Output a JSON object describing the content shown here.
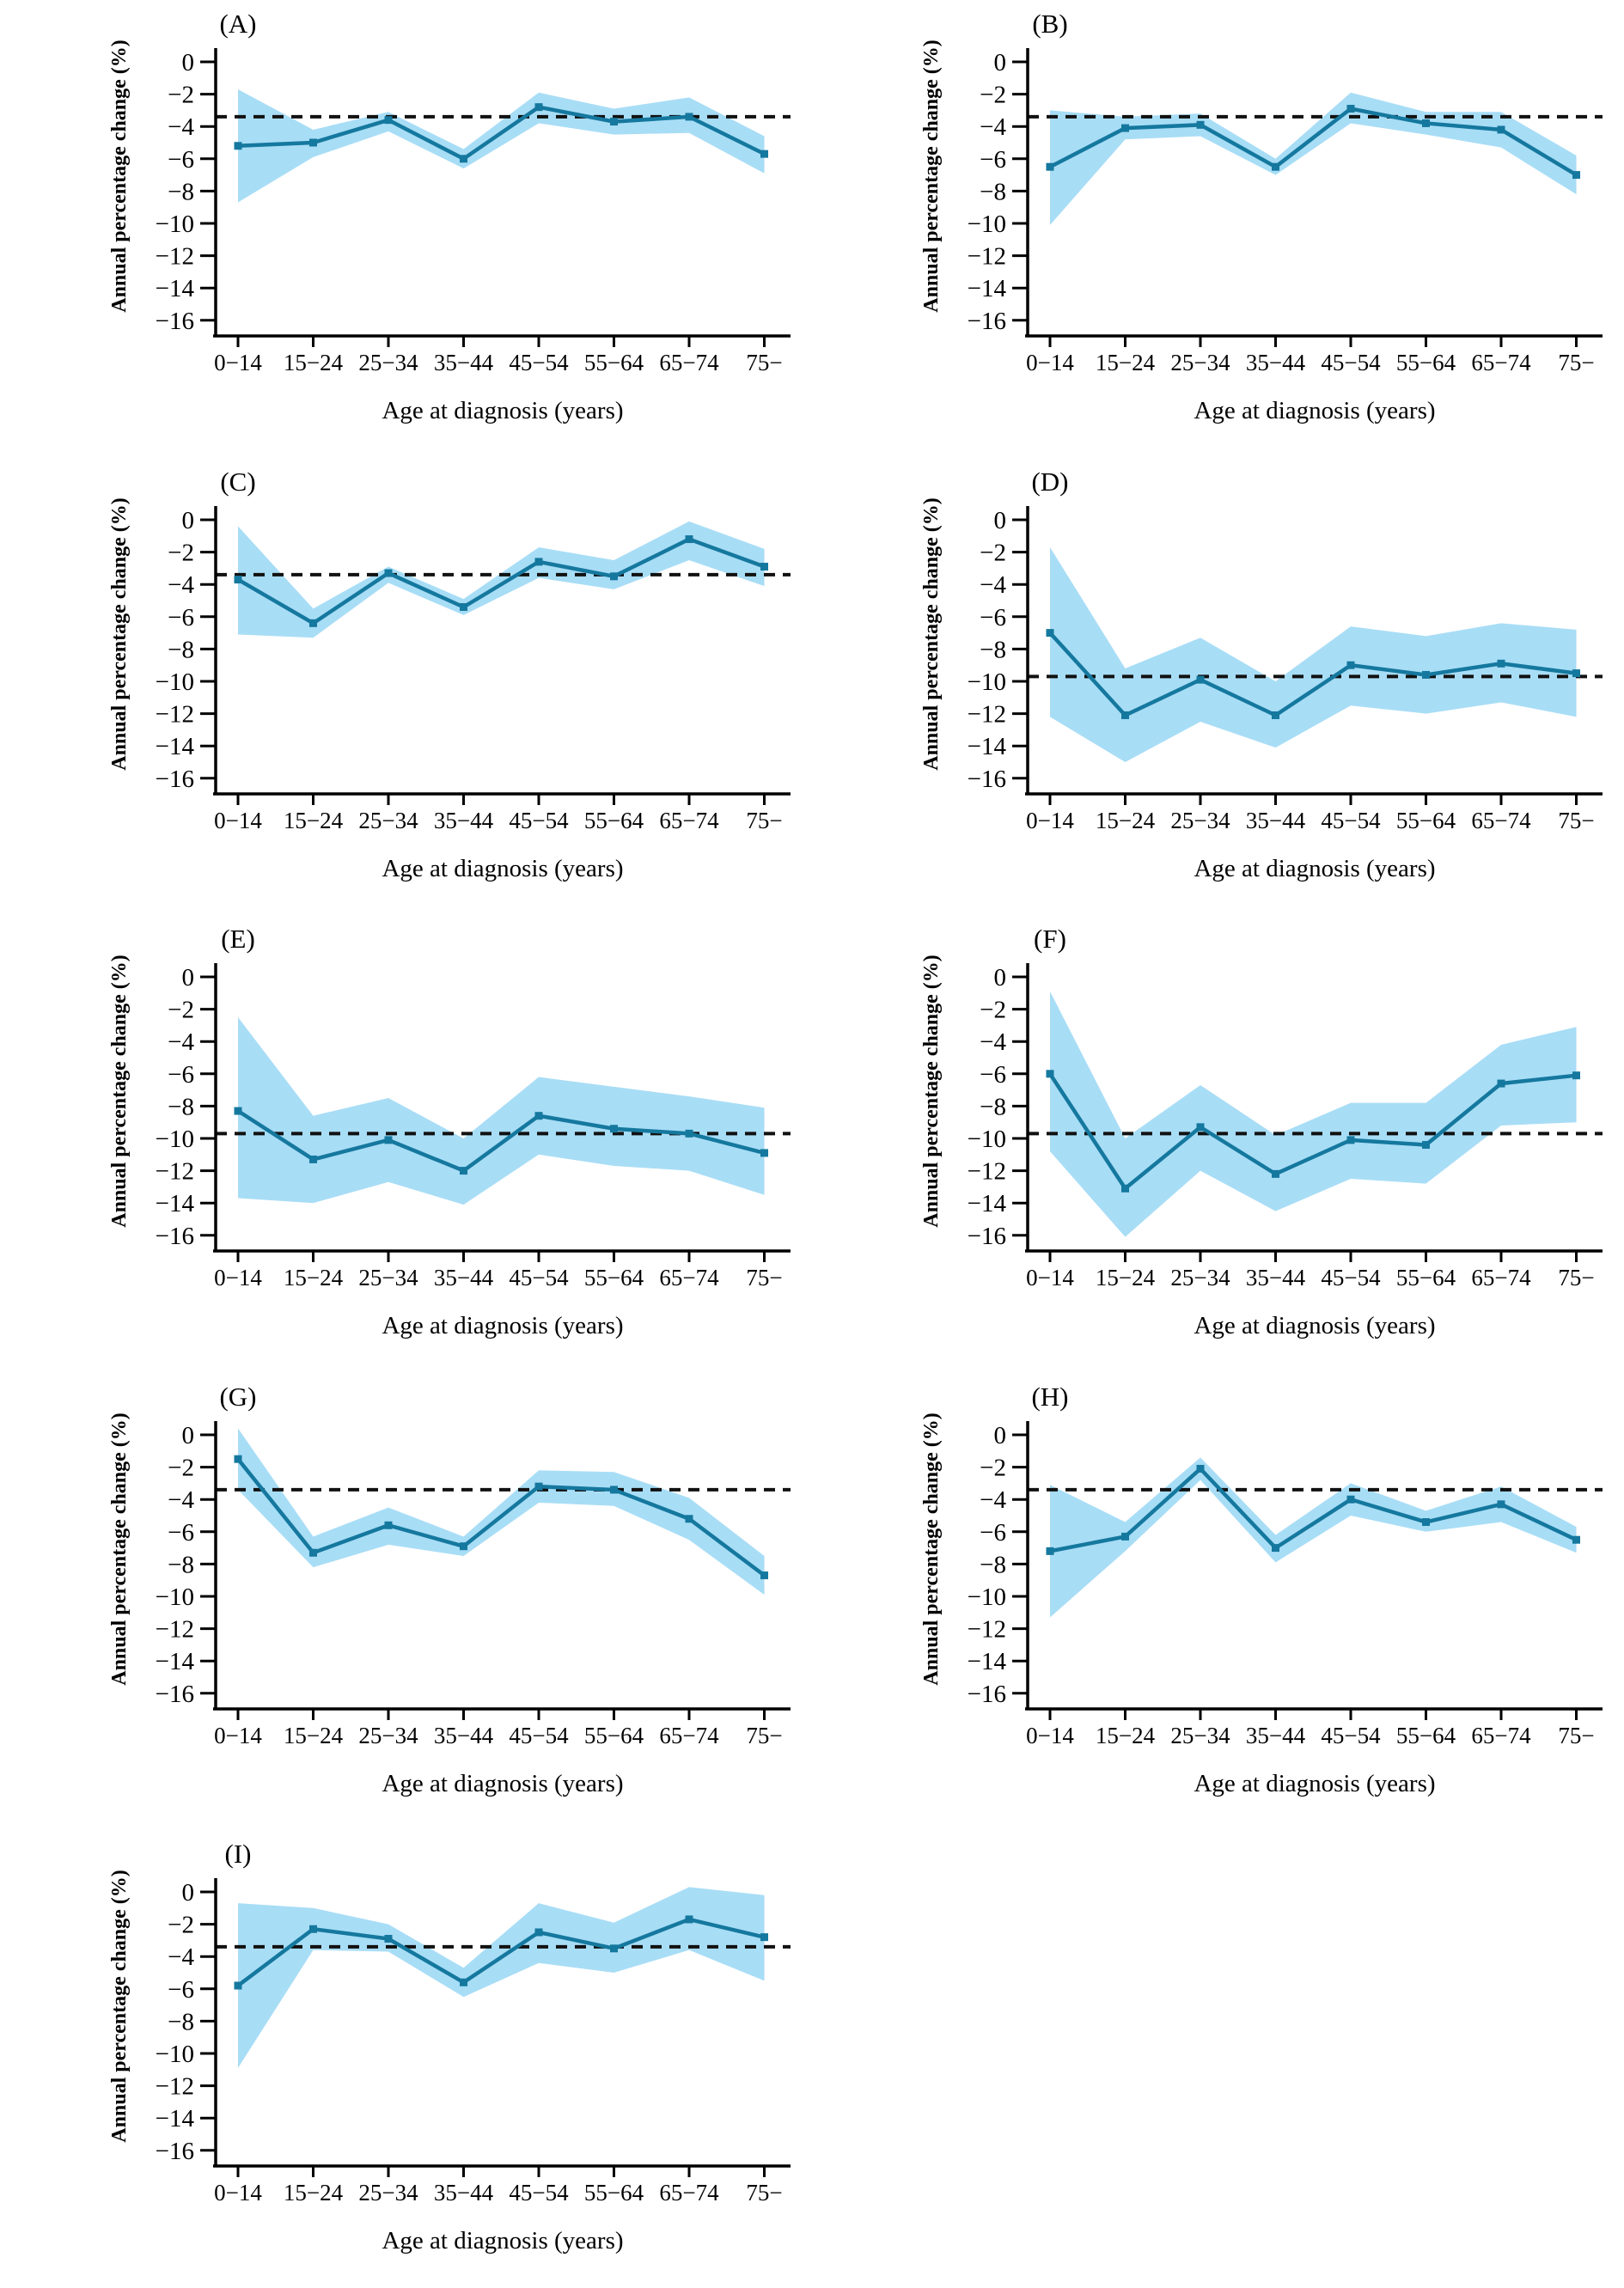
{
  "figure": {
    "background": "#ffffff"
  },
  "chart_data": {
    "type": "line",
    "title": "",
    "x_label": "Age at diagnosis (years)",
    "y_label": "Annual percentage change (%)",
    "categories": [
      "0−14",
      "15−24",
      "25−34",
      "35−44",
      "45−54",
      "55−64",
      "65−74",
      "75−"
    ],
    "y_ticks": [
      0,
      -2,
      -4,
      -6,
      -8,
      -10,
      -12,
      -14,
      -16
    ],
    "y_tick_labels": [
      "0",
      "−2",
      "−4",
      "−6",
      "−8",
      "−10",
      "−12",
      "−14",
      "−16"
    ],
    "ylim": [
      -17,
      1
    ],
    "grid": "off",
    "legend": "none",
    "band_color": "#a8ddf6",
    "line_color": "#15789e",
    "marker": "square",
    "ref_line_color": "#111111",
    "ref_line_style": "dashed",
    "panels": [
      {
        "label": "(A)",
        "values": [
          -5.2,
          -5.0,
          -3.6,
          -6.0,
          -2.8,
          -3.7,
          -3.4,
          -5.7
        ],
        "ci_upper": [
          -1.7,
          -4.2,
          -3.1,
          -5.4,
          -1.9,
          -2.9,
          -2.2,
          -4.6
        ],
        "ci_lower": [
          -8.7,
          -5.9,
          -4.3,
          -6.6,
          -3.8,
          -4.5,
          -4.4,
          -6.9
        ],
        "ref_line": -3.4
      },
      {
        "label": "(B)",
        "values": [
          -6.5,
          -4.1,
          -3.9,
          -6.5,
          -2.9,
          -3.8,
          -4.2,
          -7.0
        ],
        "ci_upper": [
          -3.0,
          -3.4,
          -3.2,
          -6.0,
          -1.9,
          -3.1,
          -3.1,
          -5.8
        ],
        "ci_lower": [
          -10.1,
          -4.8,
          -4.6,
          -7.0,
          -3.8,
          -4.5,
          -5.3,
          -8.2
        ],
        "ref_line": -3.4
      },
      {
        "label": "(C)",
        "values": [
          -3.7,
          -6.4,
          -3.3,
          -5.4,
          -2.6,
          -3.5,
          -1.2,
          -2.9
        ],
        "ci_upper": [
          -0.4,
          -5.5,
          -2.9,
          -4.9,
          -1.7,
          -2.5,
          -0.1,
          -1.8
        ],
        "ci_lower": [
          -7.1,
          -7.3,
          -3.9,
          -5.9,
          -3.6,
          -4.3,
          -2.5,
          -4.1
        ],
        "ref_line": -3.4
      },
      {
        "label": "(D)",
        "values": [
          -7.0,
          -12.1,
          -9.9,
          -12.1,
          -9.0,
          -9.6,
          -8.9,
          -9.5
        ],
        "ci_upper": [
          -1.7,
          -9.2,
          -7.3,
          -10.0,
          -6.6,
          -7.2,
          -6.4,
          -6.8
        ],
        "ci_lower": [
          -12.2,
          -15.0,
          -12.5,
          -14.1,
          -11.5,
          -12.0,
          -11.3,
          -12.2
        ],
        "ref_line": -9.7
      },
      {
        "label": "(E)",
        "values": [
          -8.3,
          -11.3,
          -10.1,
          -12.0,
          -8.6,
          -9.4,
          -9.7,
          -10.9
        ],
        "ci_upper": [
          -2.5,
          -8.6,
          -7.5,
          -10.0,
          -6.2,
          -6.8,
          -7.4,
          -8.1
        ],
        "ci_lower": [
          -13.7,
          -14.0,
          -12.7,
          -14.1,
          -11.0,
          -11.7,
          -12.0,
          -13.5
        ],
        "ref_line": -9.7
      },
      {
        "label": "(F)",
        "values": [
          -6.0,
          -13.1,
          -9.3,
          -12.2,
          -10.1,
          -10.4,
          -6.6,
          -6.1
        ],
        "ci_upper": [
          -0.9,
          -10.0,
          -6.7,
          -9.8,
          -7.8,
          -7.8,
          -4.2,
          -3.1
        ],
        "ci_lower": [
          -10.8,
          -16.1,
          -12.0,
          -14.5,
          -12.5,
          -12.8,
          -9.2,
          -9.0
        ],
        "ref_line": -9.7
      },
      {
        "label": "(G)",
        "values": [
          -1.5,
          -7.3,
          -5.6,
          -6.9,
          -3.2,
          -3.4,
          -5.2,
          -8.7
        ],
        "ci_upper": [
          0.4,
          -6.3,
          -4.5,
          -6.3,
          -2.2,
          -2.3,
          -3.9,
          -7.5
        ],
        "ci_lower": [
          -3.4,
          -8.2,
          -6.8,
          -7.5,
          -4.2,
          -4.4,
          -6.5,
          -9.9
        ],
        "ref_line": -3.4
      },
      {
        "label": "(H)",
        "values": [
          -7.2,
          -6.3,
          -2.1,
          -7.0,
          -4.0,
          -5.4,
          -4.3,
          -6.5
        ],
        "ci_upper": [
          -3.1,
          -5.4,
          -1.4,
          -6.2,
          -3.0,
          -4.7,
          -3.2,
          -5.7
        ],
        "ci_lower": [
          -11.3,
          -7.2,
          -2.8,
          -7.9,
          -5.0,
          -6.0,
          -5.4,
          -7.3
        ],
        "ref_line": -3.4
      },
      {
        "label": "(I)",
        "values": [
          -5.8,
          -2.3,
          -2.9,
          -5.6,
          -2.5,
          -3.5,
          -1.7,
          -2.8
        ],
        "ci_upper": [
          -0.7,
          -1.0,
          -2.0,
          -4.7,
          -0.7,
          -1.9,
          0.3,
          -0.2
        ],
        "ci_lower": [
          -10.9,
          -3.6,
          -3.7,
          -6.5,
          -4.4,
          -5.0,
          -3.6,
          -5.5
        ],
        "ref_line": -3.4
      }
    ]
  }
}
